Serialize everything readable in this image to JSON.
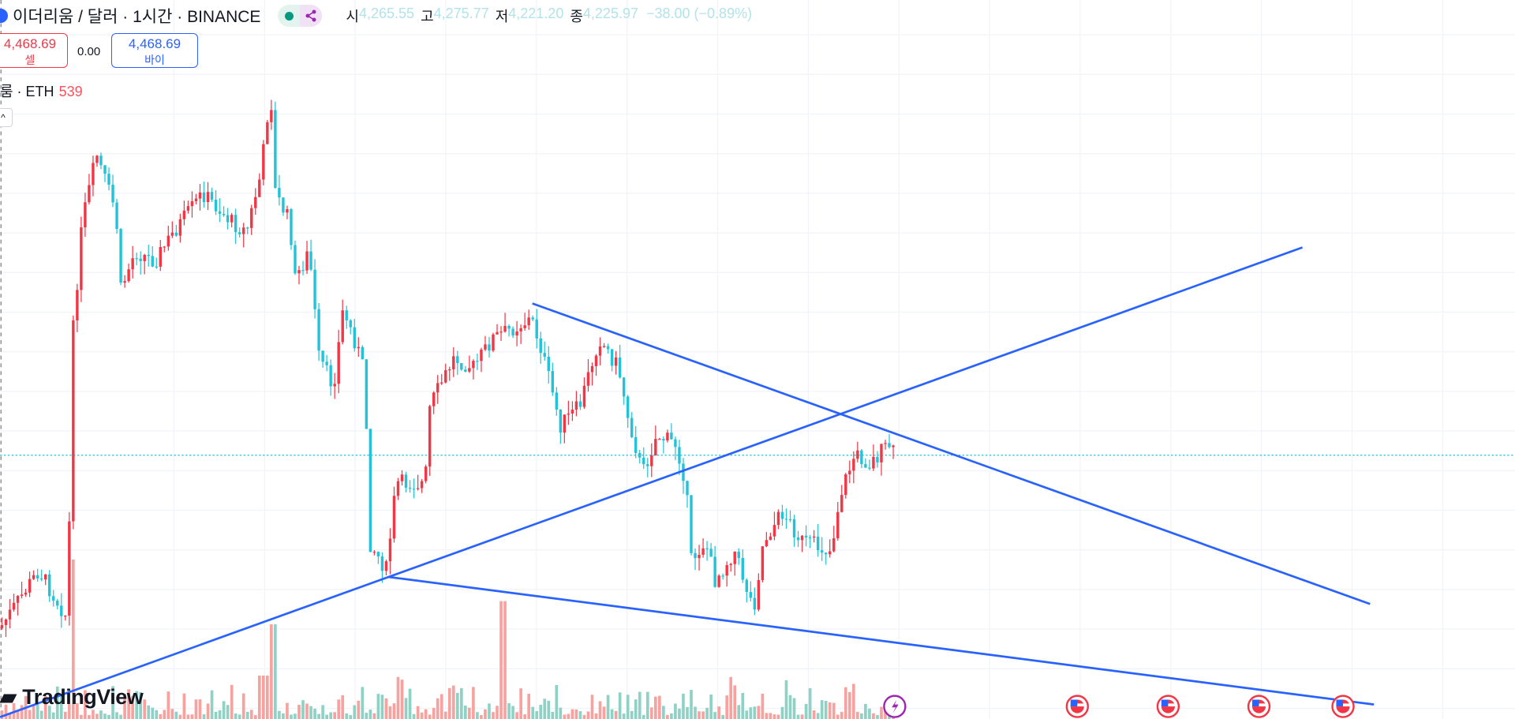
{
  "header": {
    "symbol_title": "이더리움 / 달러 · 1시간 · BINANCE",
    "ohlc": [
      {
        "label": "시",
        "value": "4,265.55"
      },
      {
        "label": "고",
        "value": "4,275.77"
      },
      {
        "label": "저",
        "value": "4,221.20"
      },
      {
        "label": "종",
        "value": "4,225.97"
      }
    ],
    "change": "−38.00 (−0.89%)"
  },
  "trade": {
    "sell_price": "4,468.69",
    "sell_label": "셀",
    "spread": "0.00",
    "buy_price": "4,468.69",
    "buy_label": "바이"
  },
  "volume_legend": {
    "label": "룸 · ETH",
    "value": "539"
  },
  "collapse_button": "^",
  "branding": {
    "logo_text": "TradingView"
  },
  "colors": {
    "up": "#f23645",
    "down": "#22c3d8",
    "trendline": "#2962ff",
    "vol_up": "#f7a29f",
    "vol_down": "#8fd1c5",
    "event_earnings": "#9c27b0",
    "event_us": "#f23645"
  },
  "events": [
    {
      "type": "lightning-event",
      "icon": "lightning-icon"
    },
    {
      "type": "us-economic-event",
      "icon": "us-flag-icon"
    },
    {
      "type": "us-economic-event",
      "icon": "us-flag-icon"
    },
    {
      "type": "us-economic-event",
      "icon": "us-flag-icon"
    },
    {
      "type": "us-economic-event",
      "icon": "us-flag-icon"
    }
  ]
}
